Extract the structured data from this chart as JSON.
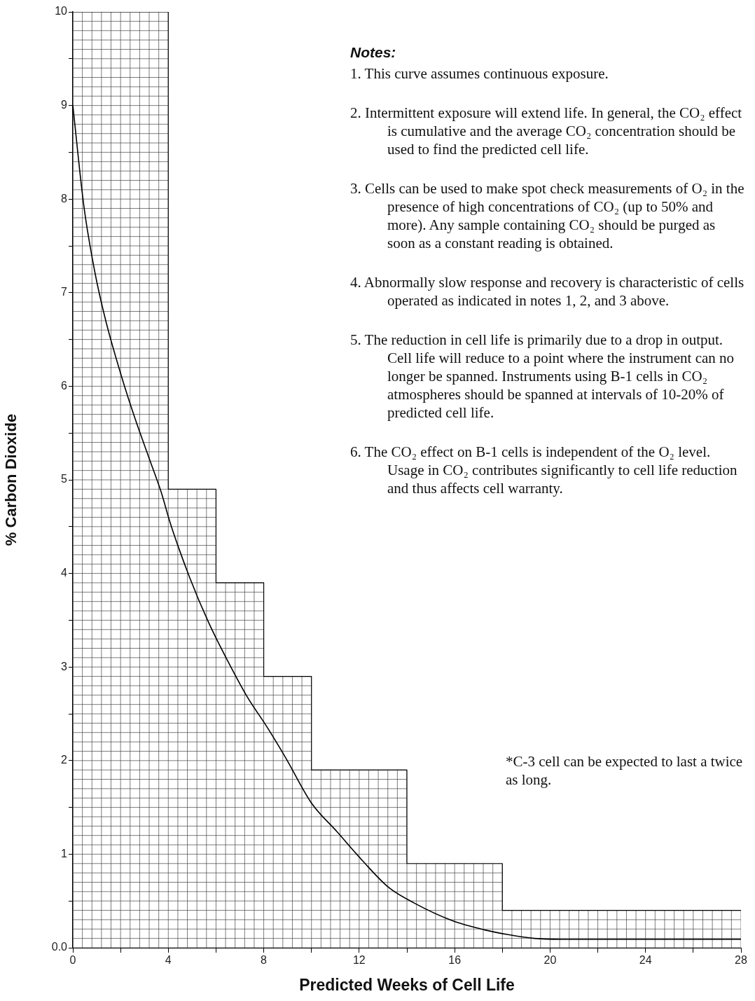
{
  "chart_data": {
    "type": "line",
    "xlabel": "Predicted Weeks of Cell Life",
    "ylabel": "% Carbon Dioxide",
    "xlim": [
      0,
      28
    ],
    "xticks": [
      0,
      {
        "value": 2,
        "label": null
      },
      4,
      {
        "value": 6,
        "label": null
      },
      8,
      {
        "value": 10,
        "label": null
      },
      12,
      {
        "value": 14,
        "label": null
      },
      16,
      {
        "value": 18,
        "label": null
      },
      20,
      {
        "value": 22,
        "label": null
      },
      24,
      {
        "value": 26,
        "label": null
      },
      28
    ],
    "ylim": [
      0,
      10
    ],
    "yticks": [
      {
        "value": 0,
        "label": "0.0"
      },
      {
        "value": 0.5,
        "label": null
      },
      1,
      {
        "value": 1.5,
        "label": null
      },
      2,
      {
        "value": 2.5,
        "label": null
      },
      3,
      {
        "value": 3.5,
        "label": null
      },
      4,
      {
        "value": 4.5,
        "label": null
      },
      5,
      {
        "value": 5.5,
        "label": null
      },
      6,
      {
        "value": 6.5,
        "label": null
      },
      7,
      {
        "value": 7.5,
        "label": null
      },
      8,
      {
        "value": 8.5,
        "label": null
      },
      9,
      {
        "value": 9.5,
        "label": null
      },
      10
    ],
    "legend": false,
    "marker": "none",
    "line_style": "solid",
    "grid": true,
    "series": [
      {
        "type": "step",
        "color": "#000000",
        "x": [
          0,
          4,
          6,
          8,
          10,
          14,
          18,
          28
        ],
        "values": [
          10,
          4.9,
          3.9,
          2.9,
          1.9,
          0.9,
          0.4,
          0.4
        ]
      },
      {
        "color": "#000000",
        "x": [
          0,
          0.46,
          0.93,
          1.39,
          2.07,
          2.6,
          3.27,
          3.7,
          4.08,
          4.89,
          5.7,
          6.5,
          7.31,
          8.11,
          8.92,
          9.99,
          11.07,
          12.14,
          13.21,
          14.29,
          15.9,
          17.27,
          18.25,
          19.34,
          20.5,
          28
        ],
        "values": [
          9.0,
          7.93,
          7.21,
          6.69,
          6.08,
          5.66,
          5.18,
          4.87,
          4.54,
          3.96,
          3.47,
          3.06,
          2.68,
          2.37,
          2.03,
          1.55,
          1.24,
          0.93,
          0.65,
          0.48,
          0.29,
          0.19,
          0.14,
          0.1,
          0.09,
          0.09
        ]
      }
    ],
    "annotations": [
      "Notes:",
      "1. This curve assumes continuous exposure.",
      "2. Intermittent exposure will extend life. In general, the CO₂ effect is cumulative and the average CO₂ concentration should be used to find the predicted cell life.",
      "3. Cells can be used to make spot check measurements of O₂ in the presence of high concentrations of CO₂ (up to 50% and more). Any sample containing CO₂ should be purged as soon as a constant reading is obtained.",
      "4. Abnormally slow response and recovery is characteristic of cells operated as indicated in notes 1, 2, and 3 above.",
      "5. The reduction in cell life is primarily due to a drop in output. Cell life will reduce to a point where the instrument can no longer be spanned. Instruments using B-1 cells in CO₂ atmospheres should be spanned at intervals  of 10-20% of predicted cell life.",
      "6. The CO₂ effect on B-1 cells is independent of the O₂ level. Usage in CO₂ contributes significantly to cell life reduction and thus affects cell warranty.",
      "*C-3 cell can be expected to last a twice as long."
    ]
  }
}
